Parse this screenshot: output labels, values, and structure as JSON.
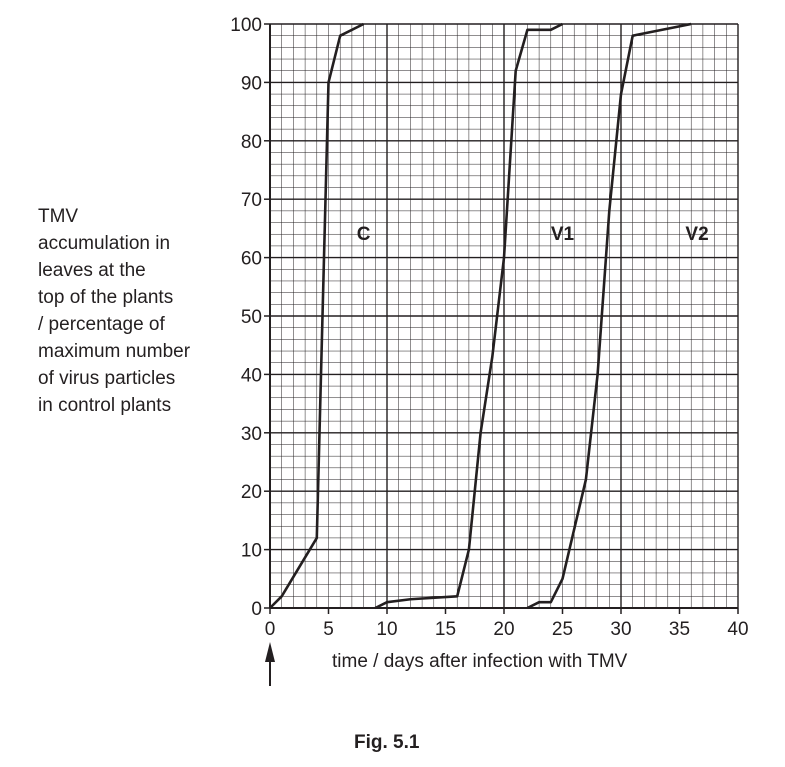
{
  "chart_data": {
    "type": "line",
    "ylabel_lines": [
      "TMV",
      "accumulation in",
      "leaves at the",
      "top of the plants",
      "/ percentage of",
      "maximum number",
      "of virus particles",
      "in control plants"
    ],
    "xlabel": "time / days after infection with TMV",
    "xlim": [
      0,
      40
    ],
    "ylim": [
      0,
      100
    ],
    "x_ticks": [
      0,
      5,
      10,
      15,
      20,
      25,
      30,
      35,
      40
    ],
    "y_ticks": [
      0,
      10,
      20,
      30,
      40,
      50,
      60,
      70,
      80,
      90,
      100
    ],
    "grid": true,
    "series": [
      {
        "name": "C",
        "label_at": [
          8,
          63
        ],
        "points": [
          [
            0,
            0
          ],
          [
            1,
            2
          ],
          [
            4,
            12
          ],
          [
            5,
            90
          ],
          [
            6,
            98
          ],
          [
            8,
            100
          ]
        ]
      },
      {
        "name": "V1",
        "label_at": [
          25,
          63
        ],
        "points": [
          [
            9,
            0
          ],
          [
            10,
            1
          ],
          [
            12,
            1.5
          ],
          [
            16,
            2
          ],
          [
            17,
            10
          ],
          [
            18,
            30
          ],
          [
            19,
            43
          ],
          [
            20,
            60
          ],
          [
            21,
            92
          ],
          [
            22,
            99
          ],
          [
            24,
            99
          ],
          [
            25,
            100
          ]
        ]
      },
      {
        "name": "V2",
        "label_at": [
          36.5,
          63
        ],
        "points": [
          [
            22,
            0
          ],
          [
            23,
            1
          ],
          [
            24,
            1
          ],
          [
            25,
            5
          ],
          [
            27,
            22
          ],
          [
            28,
            40
          ],
          [
            29,
            68
          ],
          [
            30,
            88
          ],
          [
            31,
            98
          ],
          [
            36,
            100
          ]
        ]
      }
    ],
    "annotation": "infection arrow at day 0"
  },
  "figure_caption": "Fig. 5.1"
}
